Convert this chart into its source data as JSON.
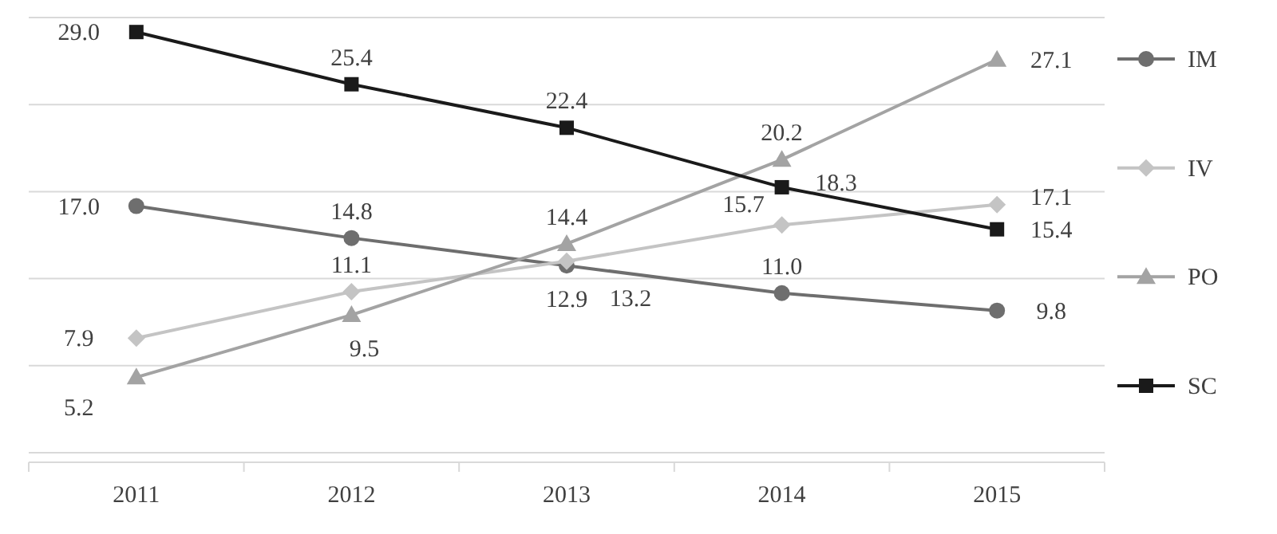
{
  "chart_data": {
    "type": "line",
    "categories": [
      "2011",
      "2012",
      "2013",
      "2014",
      "2015"
    ],
    "series": [
      {
        "name": "IM",
        "color": "#6e6e6e",
        "marker": "circle",
        "values": [
          17.0,
          14.8,
          12.9,
          11.0,
          9.8
        ],
        "value_labels": [
          "17.0",
          "14.8",
          "12.9",
          "11.0",
          "9.8"
        ]
      },
      {
        "name": "IV",
        "color": "#c4c4c4",
        "marker": "diamond",
        "values": [
          7.9,
          11.1,
          13.2,
          15.7,
          17.1
        ],
        "value_labels": [
          "7.9",
          "11.1",
          "13.2",
          "15.7",
          "17.1"
        ]
      },
      {
        "name": "PO",
        "color": "#a3a3a3",
        "marker": "triangle",
        "values": [
          5.2,
          9.5,
          14.4,
          20.2,
          27.1
        ],
        "value_labels": [
          "5.2",
          "9.5",
          "14.4",
          "20.2",
          "27.1"
        ]
      },
      {
        "name": "SC",
        "color": "#1a1a1a",
        "marker": "square",
        "values": [
          29.0,
          25.4,
          22.4,
          18.3,
          15.4
        ],
        "value_labels": [
          "29.0",
          "25.4",
          "22.4",
          "18.3",
          "15.4"
        ]
      }
    ],
    "ylim": [
      0,
      30
    ],
    "yticks": [
      {
        "value": 0,
        "label": null
      },
      {
        "value": 6,
        "label": null
      },
      {
        "value": 12,
        "label": null
      },
      {
        "value": 18,
        "label": null
      },
      {
        "value": 24,
        "label": null
      },
      {
        "value": 30,
        "label": null
      }
    ],
    "tick_labels": "x",
    "grid": "y",
    "legend": "right"
  }
}
